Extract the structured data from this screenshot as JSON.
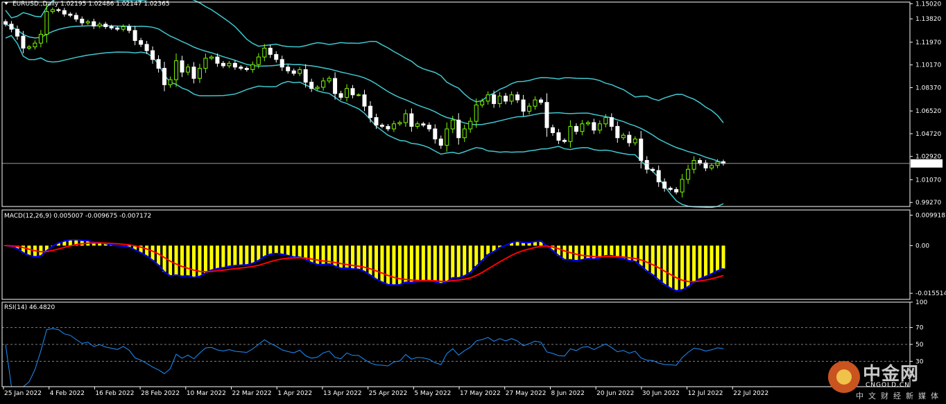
{
  "header": {
    "symbol_label": "EURUSD.,Daily  1.02195 1.02486 1.02147 1.02365",
    "macd_label": "MACD(12,26,9) 0.005007 -0.009675 -0.007172",
    "rsi_label": "RSI(14) 46.4820"
  },
  "colors": {
    "background": "#000000",
    "bull": "#7CFC00",
    "bear": "#FFFFFF",
    "bands": "#40C8D0",
    "hist": "#FFFF00",
    "macd_line": "#0000FF",
    "signal_line": "#FF0000",
    "rsi_line": "#1E90FF",
    "grid": "#808080"
  },
  "chart_data": [
    {
      "type": "candlestick",
      "name": "price",
      "title": "EURUSD.,Daily",
      "ohlc_last": {
        "open": 1.02195,
        "high": 1.02486,
        "low": 1.02147,
        "close": 1.02365
      },
      "current_price_label": "1.02365",
      "y_ticks": [
        "1.15020",
        "1.13820",
        "1.11970",
        "1.10170",
        "1.08370",
        "1.06520",
        "1.04720",
        "1.02920",
        "1.01070",
        "0.99270"
      ],
      "ylim": [
        0.9895,
        1.1515
      ],
      "x_labels": [
        "25 Jan 2022",
        "4 Feb 2022",
        "16 Feb 2022",
        "28 Feb 2022",
        "10 Mar 2022",
        "22 Mar 2022",
        "1 Apr 2022",
        "13 Apr 2022",
        "25 Apr 2022",
        "5 May 2022",
        "17 May 2022",
        "27 May 2022",
        "8 Jun 2022",
        "20 Jun 2022",
        "30 Jun 2022",
        "12 Jul 2022",
        "22 Jul 2022"
      ],
      "close": [
        1.134,
        1.13,
        1.1245,
        1.115,
        1.116,
        1.119,
        1.126,
        1.144,
        1.1455,
        1.1448,
        1.142,
        1.141,
        1.138,
        1.135,
        1.136,
        1.1325,
        1.134,
        1.132,
        1.131,
        1.13,
        1.132,
        1.129,
        1.121,
        1.118,
        1.113,
        1.106,
        1.099,
        1.086,
        1.09,
        1.105,
        1.096,
        1.1,
        1.091,
        1.099,
        1.107,
        1.108,
        1.103,
        1.101,
        1.103,
        1.1,
        1.099,
        1.098,
        1.102,
        1.108,
        1.115,
        1.11,
        1.106,
        1.1,
        1.097,
        1.095,
        1.098,
        1.088,
        1.083,
        1.084,
        1.089,
        1.091,
        1.079,
        1.076,
        1.083,
        1.078,
        1.078,
        1.069,
        1.06,
        1.054,
        1.053,
        1.051,
        1.055,
        1.056,
        1.063,
        1.053,
        1.055,
        1.054,
        1.051,
        1.043,
        1.038,
        1.051,
        1.058,
        1.044,
        1.051,
        1.057,
        1.07,
        1.073,
        1.078,
        1.071,
        1.077,
        1.073,
        1.078,
        1.074,
        1.065,
        1.069,
        1.074,
        1.072,
        1.052,
        1.048,
        1.042,
        1.041,
        1.053,
        1.049,
        1.055,
        1.056,
        1.05,
        1.055,
        1.06,
        1.053,
        1.044,
        1.046,
        1.04,
        1.043,
        1.026,
        1.019,
        1.018,
        1.009,
        1.004,
        1.003,
        1.001,
        1.011,
        1.019,
        1.026,
        1.024,
        1.02,
        1.022,
        1.025,
        1.0236
      ]
    },
    {
      "type": "bar+line",
      "name": "MACD(12,26,9)",
      "y_ticks": [
        "0.009918",
        "0.00",
        "-0.015514"
      ],
      "ylim": [
        -0.0175,
        0.0116
      ],
      "values_label": "0.005007 -0.009675 -0.007172"
    },
    {
      "type": "line",
      "name": "RSI(14)",
      "current_value": 46.482,
      "y_ticks": [
        "100",
        "70",
        "50",
        "30"
      ],
      "ylim": [
        0,
        100
      ],
      "levels": [
        70,
        50,
        30
      ]
    }
  ],
  "watermark": {
    "brand_cn": "中金网",
    "url": "CNGOLD.CN",
    "subtitle_cn": "中文财经新媒体"
  }
}
